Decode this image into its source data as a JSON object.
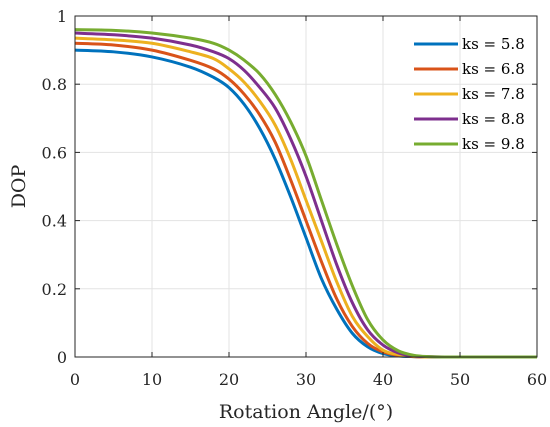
{
  "chart_data": {
    "type": "line",
    "xlabel": "Rotation Angle/(°)",
    "ylabel": "DOP",
    "xlim": [
      0,
      60
    ],
    "ylim": [
      0,
      1
    ],
    "xticks": [
      0,
      10,
      20,
      30,
      40,
      50,
      60
    ],
    "yticks": [
      0,
      0.2,
      0.4,
      0.6,
      0.8,
      1
    ],
    "ytick_labels": [
      "0",
      "0.2",
      "0.4",
      "0.6",
      "0.8",
      "1"
    ],
    "grid": true,
    "legend_position": "top-right",
    "x": [
      0,
      5,
      10,
      15,
      18,
      20,
      22,
      24,
      26,
      28,
      30,
      32,
      34,
      36,
      38,
      40,
      42,
      44,
      46,
      48,
      50,
      55,
      60
    ],
    "series": [
      {
        "name": "ks = 5.8",
        "color": "#0072BD",
        "values": [
          0.9,
          0.895,
          0.88,
          0.85,
          0.82,
          0.79,
          0.74,
          0.67,
          0.58,
          0.47,
          0.35,
          0.23,
          0.14,
          0.07,
          0.03,
          0.01,
          0.003,
          0.001,
          0,
          0,
          0,
          0,
          0
        ]
      },
      {
        "name": "ks = 6.8",
        "color": "#D95319",
        "values": [
          0.92,
          0.915,
          0.9,
          0.87,
          0.845,
          0.815,
          0.77,
          0.71,
          0.63,
          0.52,
          0.4,
          0.28,
          0.17,
          0.09,
          0.04,
          0.015,
          0.005,
          0.001,
          0,
          0,
          0,
          0,
          0
        ]
      },
      {
        "name": "ks = 7.8",
        "color": "#EDB120",
        "values": [
          0.935,
          0.93,
          0.92,
          0.895,
          0.875,
          0.845,
          0.805,
          0.75,
          0.68,
          0.58,
          0.46,
          0.34,
          0.22,
          0.12,
          0.06,
          0.02,
          0.007,
          0.002,
          0,
          0,
          0,
          0,
          0
        ]
      },
      {
        "name": "ks = 8.8",
        "color": "#7E2F8E",
        "values": [
          0.95,
          0.945,
          0.935,
          0.915,
          0.895,
          0.875,
          0.84,
          0.79,
          0.73,
          0.64,
          0.53,
          0.4,
          0.27,
          0.16,
          0.08,
          0.035,
          0.012,
          0.003,
          0.001,
          0,
          0,
          0,
          0
        ]
      },
      {
        "name": "ks = 9.8",
        "color": "#77AC30",
        "values": [
          0.96,
          0.958,
          0.95,
          0.935,
          0.92,
          0.9,
          0.87,
          0.83,
          0.77,
          0.69,
          0.59,
          0.46,
          0.33,
          0.21,
          0.11,
          0.05,
          0.018,
          0.005,
          0.001,
          0,
          0,
          0,
          0
        ]
      }
    ]
  }
}
